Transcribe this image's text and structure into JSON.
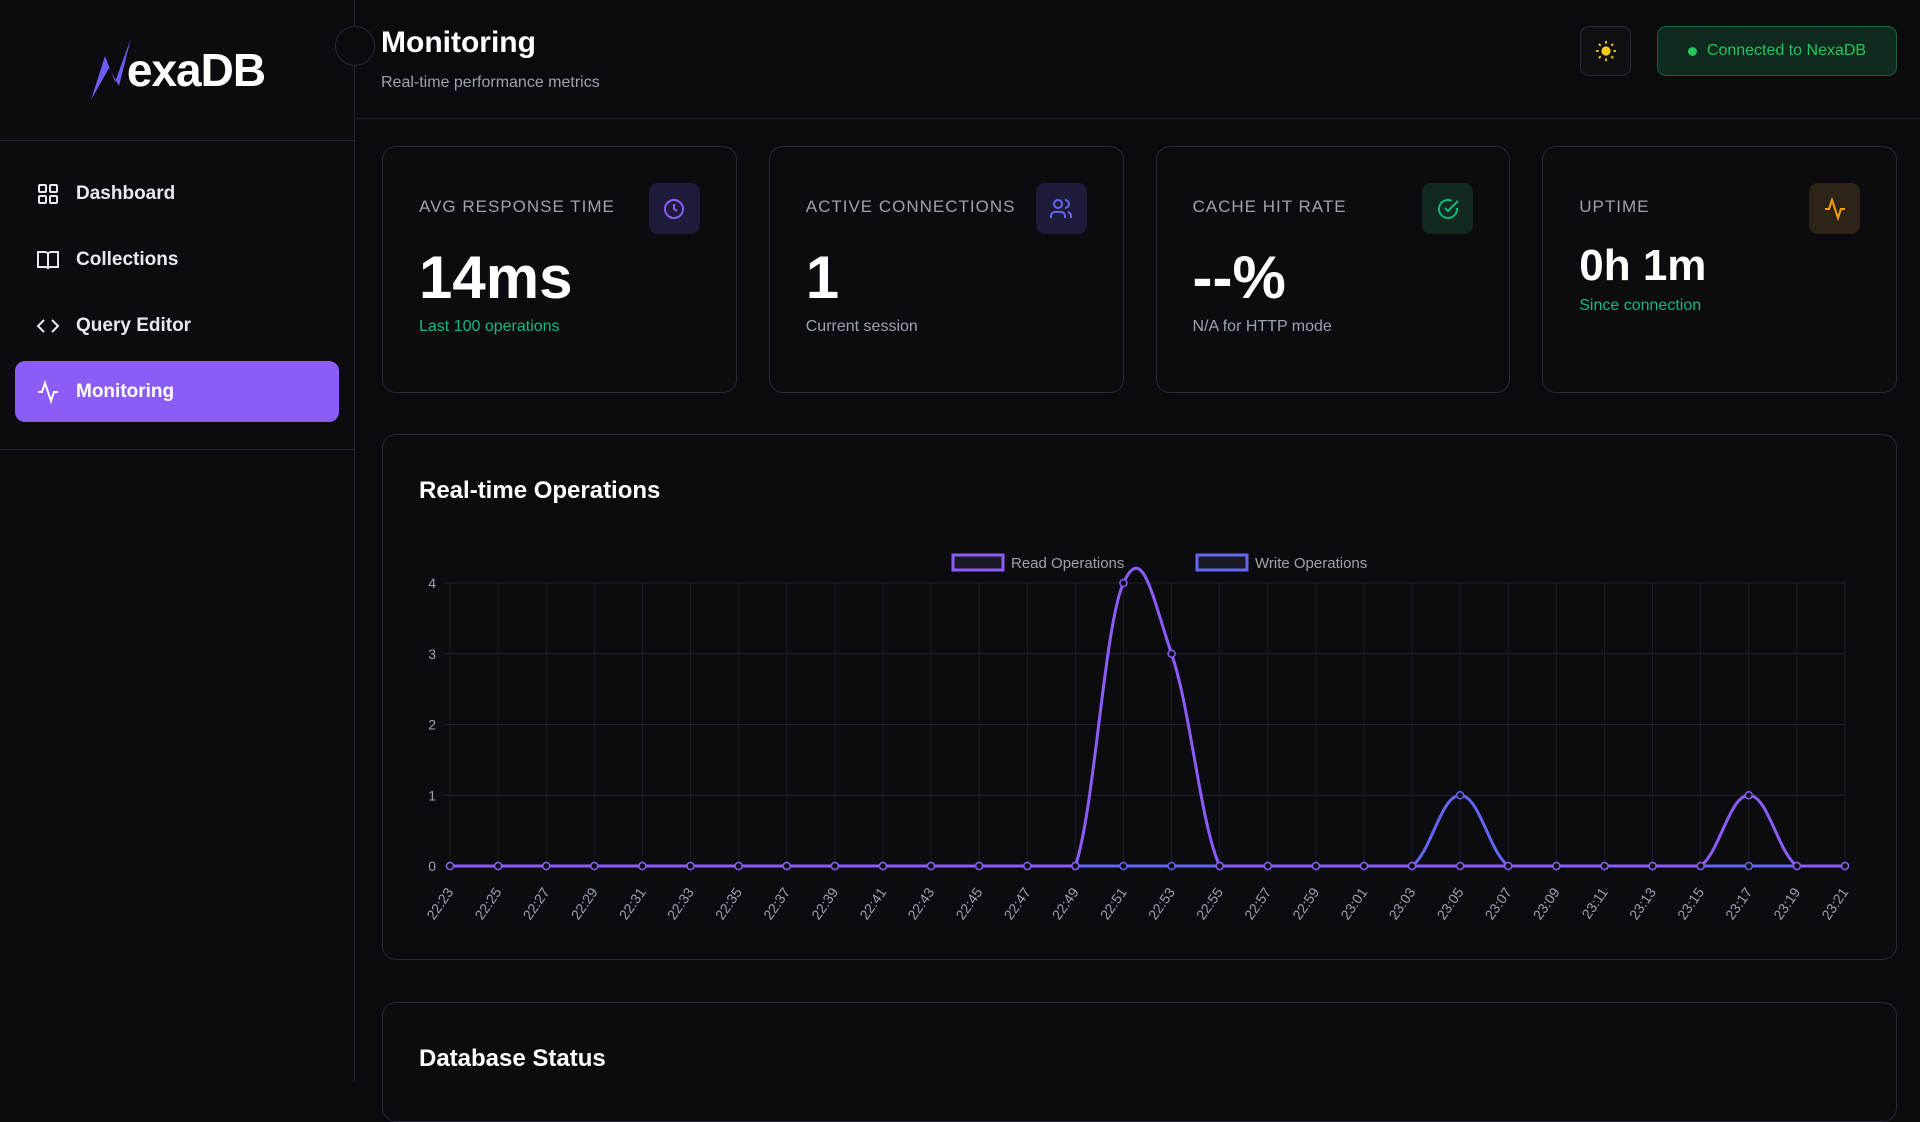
{
  "brand": {
    "name": "exaDB",
    "logo_text": "NexaDB"
  },
  "sidebar": {
    "items": [
      {
        "label": "Dashboard",
        "icon": "grid-icon"
      },
      {
        "label": "Collections",
        "icon": "book-icon"
      },
      {
        "label": "Query Editor",
        "icon": "code-icon"
      },
      {
        "label": "Monitoring",
        "icon": "activity-icon",
        "active": true
      }
    ]
  },
  "header": {
    "title": "Monitoring",
    "subtitle": "Real-time performance metrics",
    "connection": "Connected to NexaDB",
    "theme_icon": "sun-icon"
  },
  "cards": [
    {
      "label": "AVG RESPONSE TIME",
      "value": "14ms",
      "sub": "Last 100 operations",
      "icon": "clock-icon",
      "color": "#8b5cf6"
    },
    {
      "label": "ACTIVE CONNECTIONS",
      "value": "1",
      "sub": "Current session",
      "icon": "users-icon",
      "color": "#6366f1"
    },
    {
      "label": "CACHE HIT RATE",
      "value": "--%",
      "sub": "N/A for HTTP mode",
      "icon": "check-circle-icon",
      "color": "#10b981"
    },
    {
      "label": "UPTIME",
      "value": "0h 1m",
      "sub": "Since connection",
      "icon": "activity-icon",
      "color": "#f59e0b"
    }
  ],
  "chart_panel": {
    "title": "Real-time Operations"
  },
  "status_panel": {
    "title": "Database Status"
  },
  "chart_data": {
    "type": "line",
    "x": [
      "22:23",
      "22:25",
      "22:27",
      "22:29",
      "22:31",
      "22:33",
      "22:35",
      "22:37",
      "22:39",
      "22:41",
      "22:43",
      "22:45",
      "22:47",
      "22:49",
      "22:51",
      "22:53",
      "22:55",
      "22:57",
      "22:59",
      "23:01",
      "23:03",
      "23:05",
      "23:07",
      "23:09",
      "23:11",
      "23:13",
      "23:15",
      "23:17",
      "23:19",
      "23:21"
    ],
    "series": [
      {
        "name": "Read Operations",
        "color": "#8b5cf6",
        "values": [
          0,
          0,
          0,
          0,
          0,
          0,
          0,
          0,
          0,
          0,
          0,
          0,
          0,
          0,
          4,
          3,
          0,
          0,
          0,
          0,
          0,
          0,
          0,
          0,
          0,
          0,
          0,
          1,
          0,
          0
        ]
      },
      {
        "name": "Write Operations",
        "color": "#6366f1",
        "values": [
          0,
          0,
          0,
          0,
          0,
          0,
          0,
          0,
          0,
          0,
          0,
          0,
          0,
          0,
          0,
          0,
          0,
          0,
          0,
          0,
          0,
          1,
          0,
          0,
          0,
          0,
          0,
          0,
          0,
          0
        ]
      }
    ],
    "ylim": [
      0,
      4
    ],
    "yticks": [
      0,
      1,
      2,
      3,
      4
    ],
    "grid": true,
    "legend": "top"
  }
}
